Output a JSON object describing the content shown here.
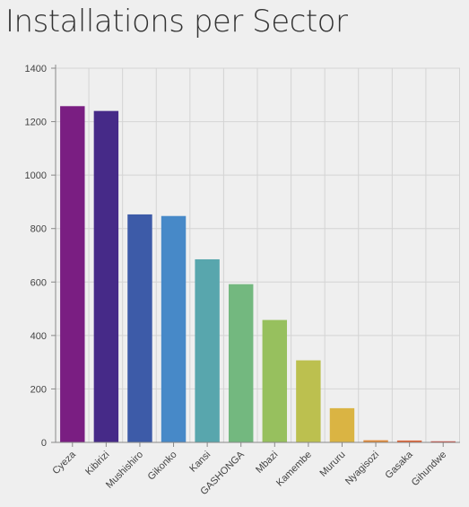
{
  "title": "Installations per Sector",
  "colors": {
    "background": "#efefef",
    "grid": "#d4d4d4",
    "axis": "#888888"
  },
  "chart_data": {
    "type": "bar",
    "title": "Installations per Sector",
    "xlabel": "",
    "ylabel": "",
    "ylim": [
      0,
      1400
    ],
    "y_ticks": [
      0,
      200,
      400,
      600,
      800,
      1000,
      1200,
      1400
    ],
    "grid": true,
    "categories": [
      "Cyeza",
      "Kibirizi",
      "Mushishiro",
      "Gikonko",
      "Kansi",
      "GASHONGA",
      "Mbazi",
      "Kamembe",
      "Mururu",
      "Nyagisozi",
      "Gasaka",
      "Gihundwe"
    ],
    "values": [
      1258,
      1240,
      853,
      847,
      685,
      592,
      458,
      307,
      128,
      8,
      7,
      4
    ],
    "bar_colors": [
      "#7a1e82",
      "#462a88",
      "#3d5ba8",
      "#4789c8",
      "#58a6ad",
      "#73b87f",
      "#97c05e",
      "#bcc04f",
      "#dab443",
      "#e08a3a",
      "#de6538",
      "#d13a2f"
    ]
  }
}
